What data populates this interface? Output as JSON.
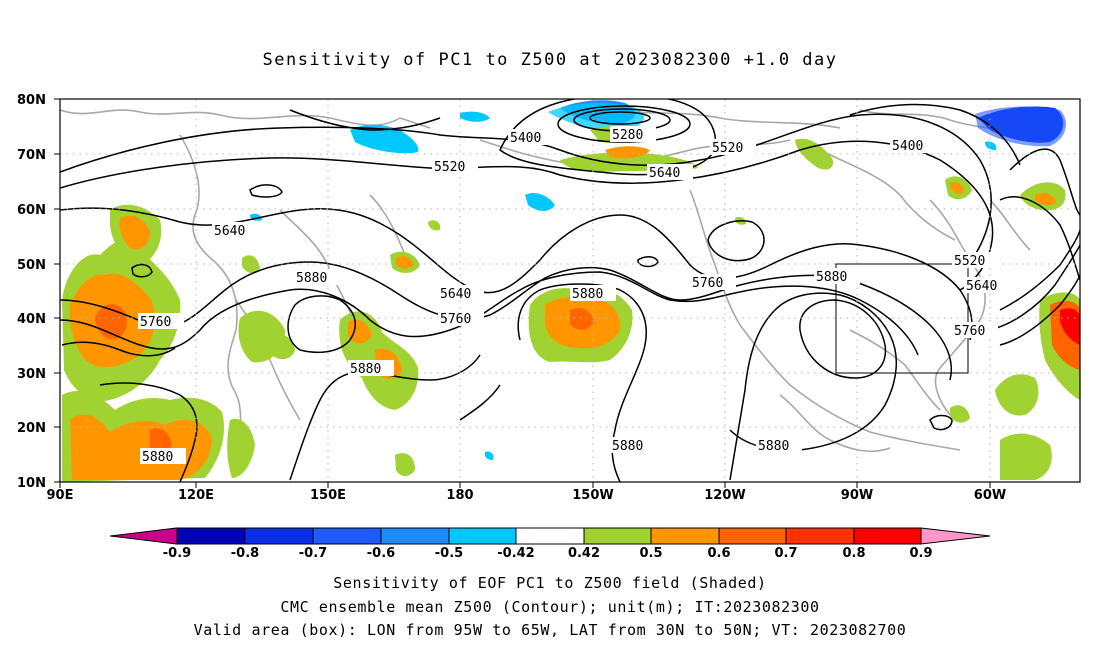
{
  "title": "Sensitivity of PC1 to Z500 at 2023082300 +1.0 day",
  "map": {
    "lat_labels": [
      "80N",
      "70N",
      "60N",
      "50N",
      "40N",
      "30N",
      "20N",
      "10N"
    ],
    "lon_labels": [
      "90E",
      "120E",
      "150E",
      "180",
      "150W",
      "120W",
      "90W",
      "60W"
    ],
    "contour_labels": [
      {
        "text": "5400",
        "name": "contour-label-5400-north-pacific"
      },
      {
        "text": "5280",
        "name": "contour-label-5280-arctic"
      },
      {
        "text": "5400",
        "name": "contour-label-5400-greenland"
      },
      {
        "text": "5520",
        "name": "contour-label-5520-pacific"
      },
      {
        "text": "5520",
        "name": "contour-label-5520-canada"
      },
      {
        "text": "5640",
        "name": "contour-label-5640-alaska"
      },
      {
        "text": "5640",
        "name": "contour-label-5640-asia"
      },
      {
        "text": "5520",
        "name": "contour-label-5520-atlantic"
      },
      {
        "text": "5880",
        "name": "contour-label-5880-japan"
      },
      {
        "text": "5640",
        "name": "contour-label-5640-central-pacific"
      },
      {
        "text": "5880",
        "name": "contour-label-5880-east-pacific"
      },
      {
        "text": "5760",
        "name": "contour-label-5760-west-coast"
      },
      {
        "text": "5880",
        "name": "contour-label-5880-us"
      },
      {
        "text": "5640",
        "name": "contour-label-5640-atlantic"
      },
      {
        "text": "5760",
        "name": "contour-label-5760-asia"
      },
      {
        "text": "5760",
        "name": "contour-label-5760-central-pacific"
      },
      {
        "text": "5760",
        "name": "contour-label-5760-atlantic"
      },
      {
        "text": "5880",
        "name": "contour-label-5880-west-pacific"
      },
      {
        "text": "5880",
        "name": "contour-label-5880-south-asia"
      },
      {
        "text": "5880",
        "name": "contour-label-5880-subtropical-pacific"
      },
      {
        "text": "5880",
        "name": "contour-label-5880-mexico"
      }
    ],
    "valid_box": {
      "lon_from": "95W",
      "lon_to": "65W",
      "lat_from": "30N",
      "lat_to": "50N"
    }
  },
  "colorbar": {
    "ticks": [
      "-0.9",
      "-0.8",
      "-0.7",
      "-0.6",
      "-0.5",
      "-0.42",
      "0.42",
      "0.5",
      "0.6",
      "0.7",
      "0.8",
      "0.9"
    ],
    "colors": [
      "#c8008c",
      "#0000b4",
      "#0a2ee6",
      "#1e5aff",
      "#1e8cff",
      "#00c8ff",
      "#ffffff",
      "#a0d232",
      "#ff9600",
      "#ff6400",
      "#ff3200",
      "#ff0000",
      "#ff96c8"
    ]
  },
  "captions": {
    "line1": "Sensitivity of EOF PC1 to Z500 field (Shaded)",
    "line2": "CMC ensemble mean Z500 (Contour); unit(m); IT:2023082300",
    "line3": "Valid area (box): LON from 95W to 65W, LAT from 30N to 50N; VT: 2023082700"
  }
}
